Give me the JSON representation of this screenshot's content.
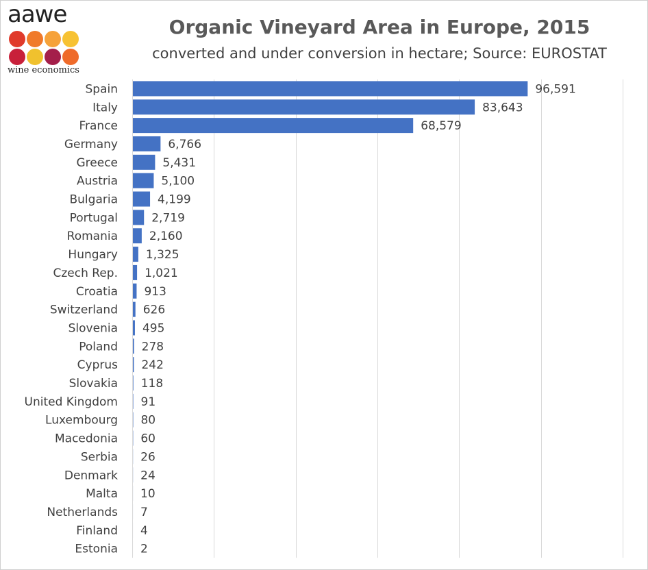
{
  "header": {
    "logo_word": "aawe",
    "logo_tag": "wine economics",
    "logo_dot_colors": [
      "#e03a2b",
      "#f07a2a",
      "#f6a23a",
      "#f7c233",
      "#c8203a",
      "#f0c12e",
      "#a41f4a",
      "#ef6b2a"
    ],
    "title": "Organic Vineyard Area in Europe, 2015",
    "subtitle": "converted and under conversion in hectare; Source: EUROSTAT"
  },
  "chart_data": {
    "type": "bar",
    "orientation": "horizontal",
    "title": "Organic Vineyard Area in Europe, 2015",
    "subtitle": "converted and under conversion in hectare; Source: EUROSTAT",
    "categories": [
      "Spain",
      "Italy",
      "France",
      "Germany",
      "Greece",
      "Austria",
      "Bulgaria",
      "Portugal",
      "Romania",
      "Hungary",
      "Czech Rep.",
      "Croatia",
      "Switzerland",
      "Slovenia",
      "Poland",
      "Cyprus",
      "Slovakia",
      "United Kingdom",
      "Luxembourg",
      "Macedonia",
      "Serbia",
      "Denmark",
      "Malta",
      "Netherlands",
      "Finland",
      "Estonia"
    ],
    "values": [
      96591,
      83643,
      68579,
      6766,
      5431,
      5100,
      4199,
      2719,
      2160,
      1325,
      1021,
      913,
      626,
      495,
      278,
      242,
      118,
      91,
      80,
      60,
      26,
      24,
      10,
      7,
      4,
      2
    ],
    "data_labels": [
      "96,591",
      "83,643",
      "68,579",
      "6,766",
      "5,431",
      "5,100",
      "4,199",
      "2,719",
      "2,160",
      "1,325",
      "1,021",
      "913",
      "626",
      "495",
      "278",
      "242",
      "118",
      "91",
      "80",
      "60",
      "26",
      "24",
      "10",
      "7",
      "4",
      "2"
    ],
    "xlim": [
      0,
      120000
    ],
    "gridline_step": 20000,
    "grid": true,
    "bar_color": "#4472c4",
    "gridline_color": "#d9d9d9",
    "label_color": "#404040"
  }
}
